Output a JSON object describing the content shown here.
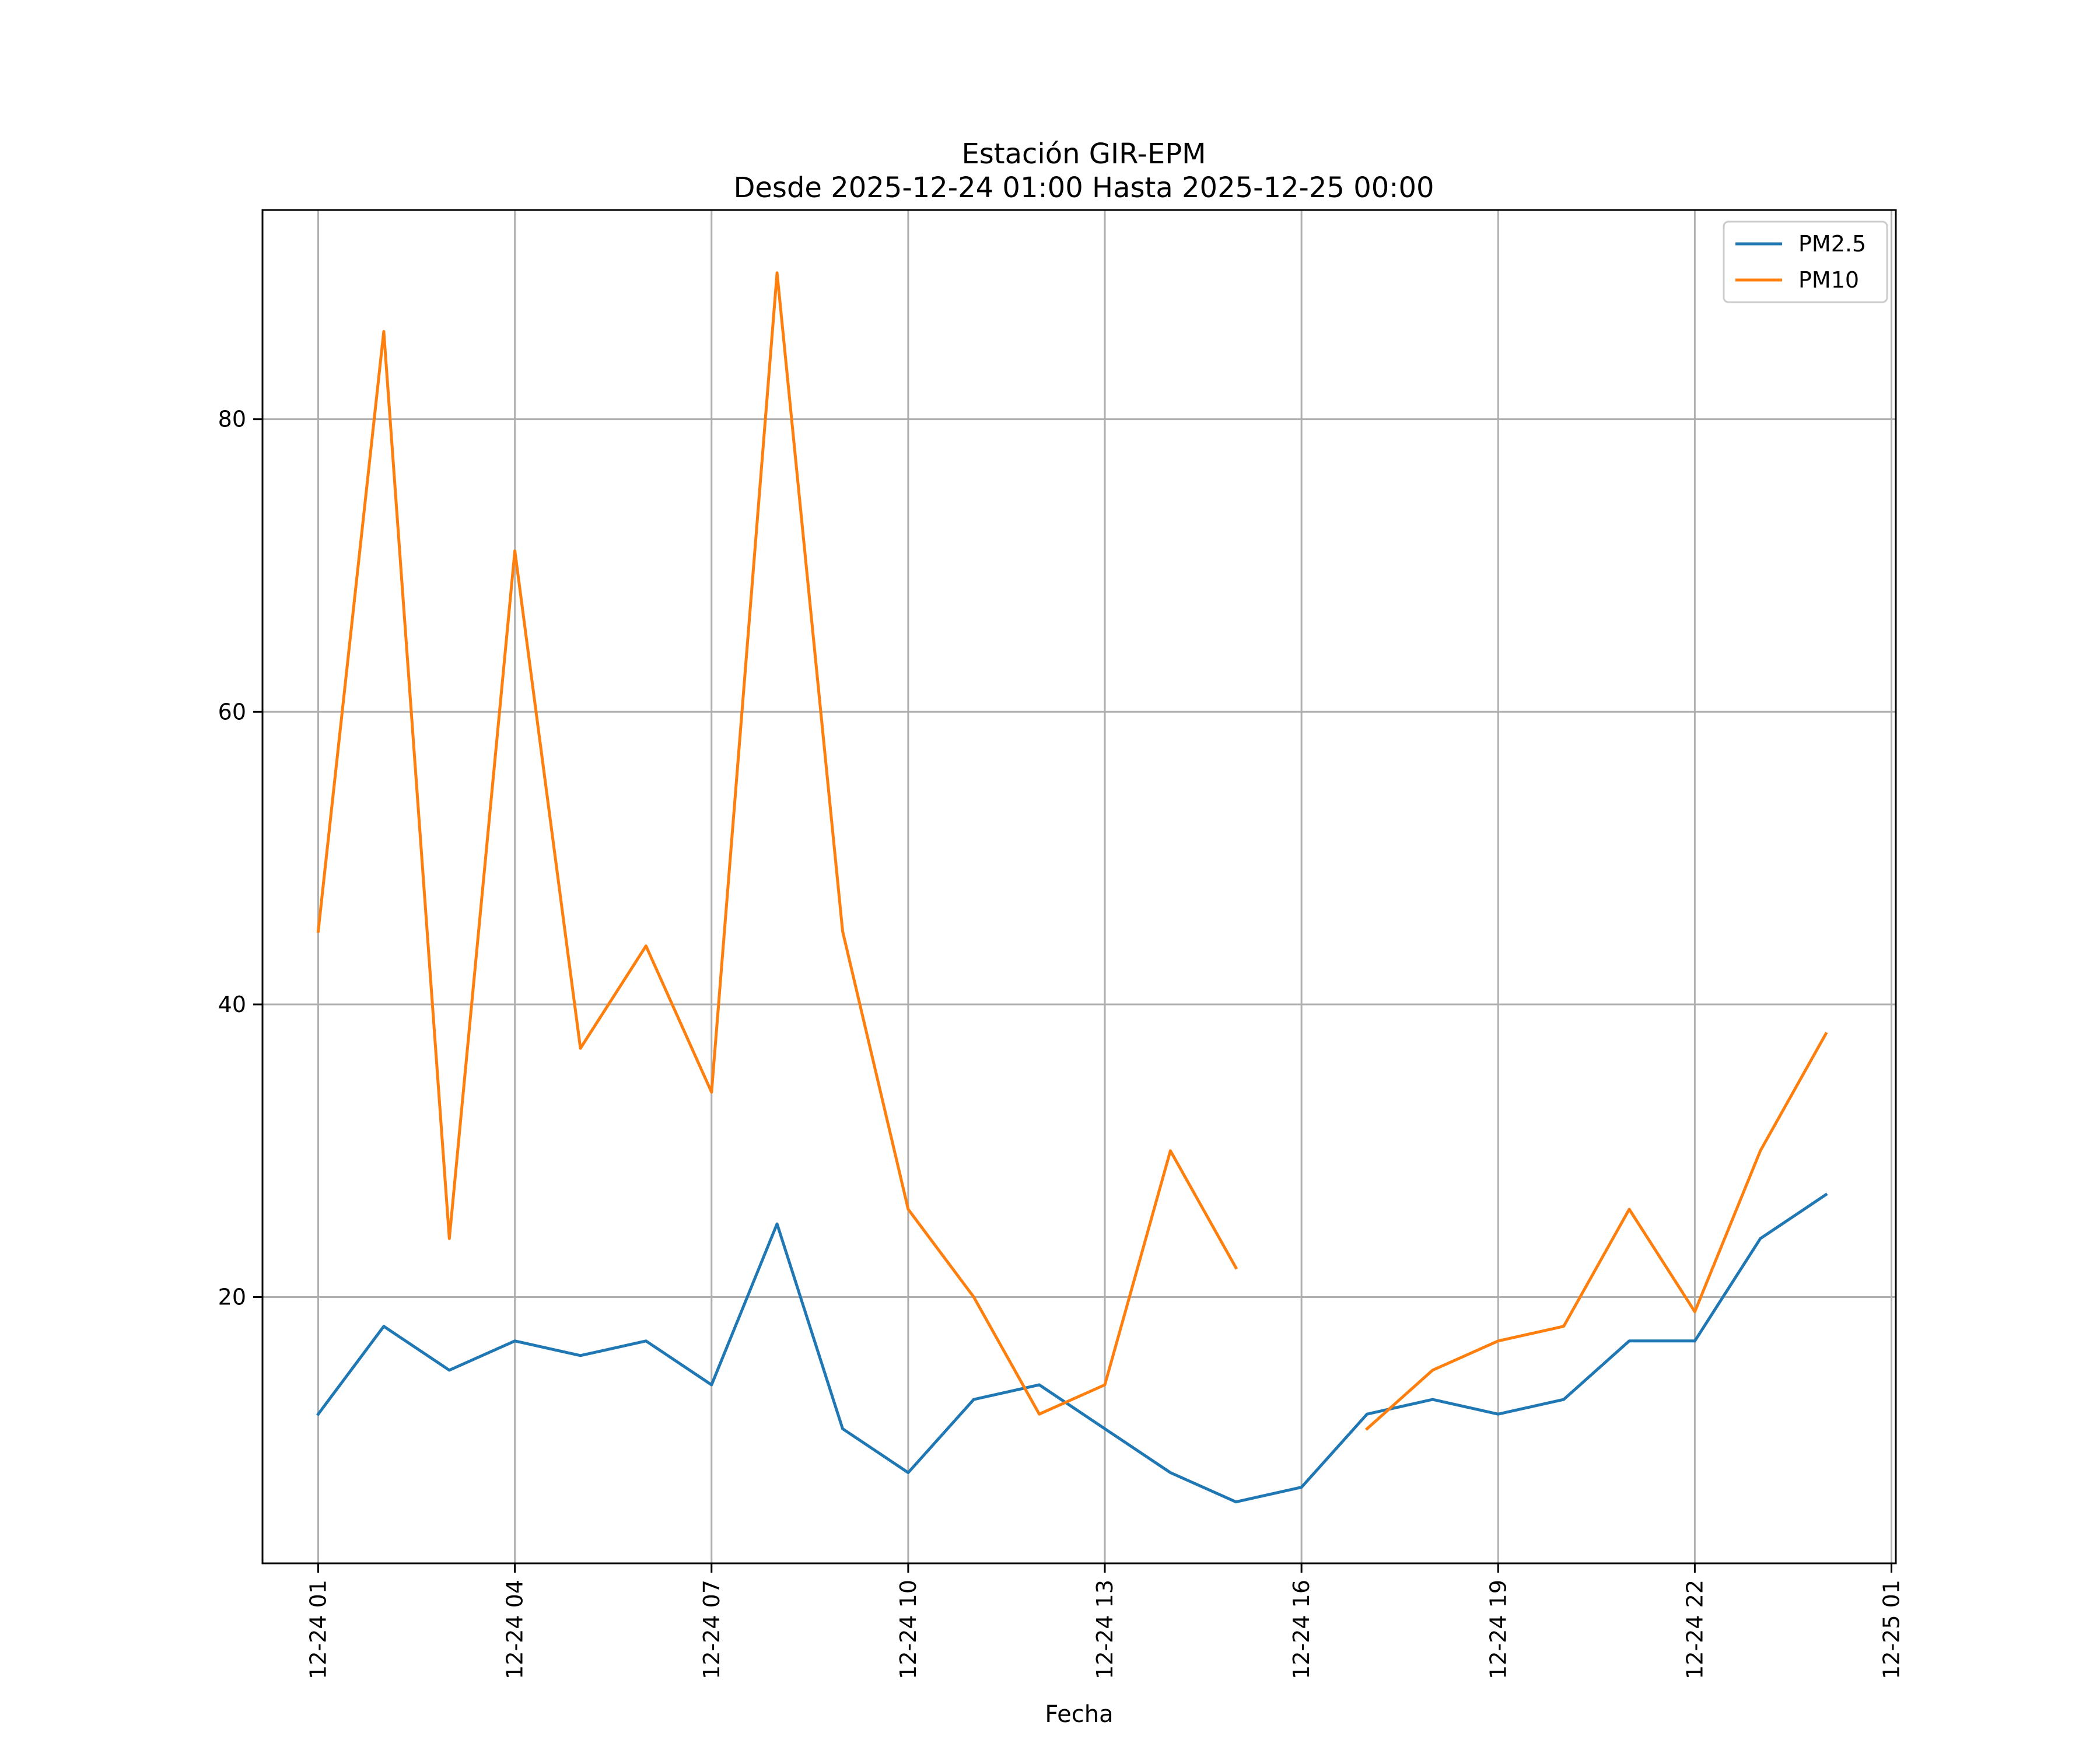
{
  "chart_data": {
    "type": "line",
    "title": "Estación GIR-EPM",
    "subtitle": "Desde 2025-12-24 01:00 Hasta 2025-12-25 00:00",
    "xlabel": "Fecha",
    "ylabel": "",
    "x": [
      "12-24 01",
      "12-24 02",
      "12-24 03",
      "12-24 04",
      "12-24 05",
      "12-24 06",
      "12-24 07",
      "12-24 08",
      "12-24 09",
      "12-24 10",
      "12-24 11",
      "12-24 12",
      "12-24 13",
      "12-24 14",
      "12-24 15",
      "12-24 16",
      "12-24 17",
      "12-24 18",
      "12-24 19",
      "12-24 20",
      "12-24 21",
      "12-24 22",
      "12-24 23",
      "12-25 00"
    ],
    "xticks": [
      "12-24 01",
      "12-24 04",
      "12-24 07",
      "12-24 10",
      "12-24 13",
      "12-24 16",
      "12-24 19",
      "12-24 22",
      "12-25 01"
    ],
    "yticks": [
      20,
      40,
      60,
      80
    ],
    "xlim": [
      "12-24 00:09",
      "12-25 01:04"
    ],
    "ylim": [
      1.8,
      94.3
    ],
    "grid": true,
    "legend_position": "top-right",
    "series": [
      {
        "name": "PM2.5",
        "color": "#1f77b4",
        "values": [
          12,
          18,
          15,
          17,
          16,
          17,
          14,
          25,
          11,
          8,
          13,
          14,
          11,
          8,
          6,
          7,
          12,
          13,
          12,
          13,
          17,
          17,
          24,
          27
        ]
      },
      {
        "name": "PM10",
        "color": "#ff7f0e",
        "values": [
          45,
          86,
          24,
          71,
          37,
          44,
          34,
          90,
          45,
          26,
          20,
          12,
          14,
          30,
          22,
          null,
          11,
          15,
          17,
          18,
          26,
          19,
          30,
          38
        ]
      }
    ]
  }
}
